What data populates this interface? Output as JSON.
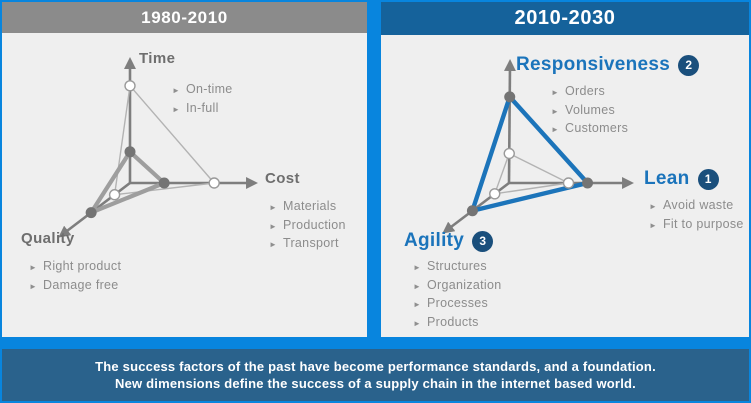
{
  "panels": {
    "past": {
      "header": "1980-2010",
      "labels": {
        "time": {
          "name": "Time",
          "bullets": [
            "On-time",
            "In-full"
          ]
        },
        "cost": {
          "name": "Cost",
          "bullets": [
            "Materials",
            "Production",
            "Transport"
          ]
        },
        "quality": {
          "name": "Quality",
          "bullets": [
            "Right product",
            "Damage free"
          ]
        }
      }
    },
    "future": {
      "header": "2010-2030",
      "labels": {
        "responsiveness": {
          "name": "Responsiveness",
          "badge": "2",
          "bullets": [
            "Orders",
            "Volumes",
            "Customers"
          ]
        },
        "lean": {
          "name": "Lean",
          "badge": "1",
          "bullets": [
            "Avoid waste",
            "Fit to purpose"
          ]
        },
        "agility": {
          "name": "Agility",
          "badge": "3",
          "bullets": [
            "Structures",
            "Organization",
            "Processes",
            "Products"
          ]
        }
      }
    }
  },
  "chart_data": [
    {
      "type": "radar",
      "panel": "1980-2010",
      "axes": [
        "Time",
        "Cost",
        "Quality"
      ],
      "series": [
        {
          "name": "outer-thin-profile",
          "values": [
            0.81,
            0.69,
            0.23
          ]
        },
        {
          "name": "inner-thick-profile",
          "values": [
            0.26,
            0.28,
            0.58
          ]
        }
      ]
    },
    {
      "type": "radar",
      "panel": "2010-2030",
      "axes": [
        "Responsiveness",
        "Lean",
        "Agility"
      ],
      "series": [
        {
          "name": "baseline-thin-profile",
          "values": [
            0.25,
            0.5,
            0.23
          ]
        },
        {
          "name": "target-thick-profile",
          "values": [
            0.73,
            0.66,
            0.59
          ]
        }
      ]
    }
  ],
  "footer": {
    "line1": "The success factors of the past have become performance standards, and a foundation.",
    "line2": "New dimensions define the success of a supply chain in the internet based world."
  },
  "colors": {
    "canvas_blue": "#0885DE",
    "panel_bg": "#EFEFEF",
    "past_header_bg": "#8B8B8B",
    "future_header_bg": "#15629B",
    "footer_bg": "#2A628C",
    "accent_blue": "#1C74BA",
    "badge_navy": "#1A4F7C",
    "axis_gray": "#7E7E7E",
    "thin_line_gray": "#B3B3B3",
    "thick_line_gray": "#9E9E9E"
  }
}
